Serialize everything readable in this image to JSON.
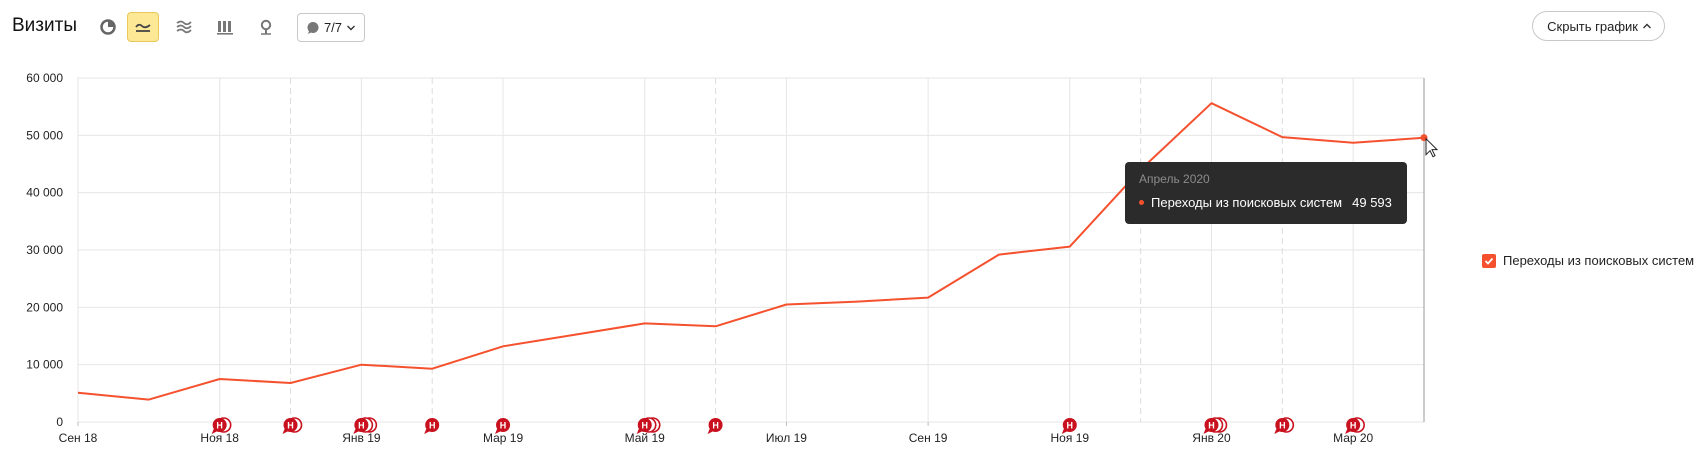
{
  "header": {
    "title": "Визиты",
    "annotations_selector": "7/7",
    "hide_chart_label": "Скрыть график"
  },
  "toolbar": {
    "buttons": [
      {
        "icon": "pie-chart-icon",
        "active": false
      },
      {
        "icon": "line-chart-icon",
        "active": true
      },
      {
        "icon": "area-chart-icon",
        "active": false
      },
      {
        "icon": "bar-chart-icon",
        "active": false
      },
      {
        "icon": "map-pin-icon",
        "active": false
      }
    ]
  },
  "tooltip": {
    "date": "Апрель 2020",
    "series": "Переходы из поисковых систем",
    "value": "49 593"
  },
  "legend": {
    "label": "Переходы из поисковых систем",
    "checked": true
  },
  "colors": {
    "series": "#f5512e",
    "annotation": "#c8101e",
    "active_button": "#fde896"
  },
  "chart_data": {
    "type": "line",
    "x": [
      "2018-09",
      "2018-10",
      "2018-11",
      "2018-12",
      "2019-01",
      "2019-02",
      "2019-03",
      "2019-04",
      "2019-05",
      "2019-06",
      "2019-07",
      "2019-08",
      "2019-09",
      "2019-10",
      "2019-11",
      "2019-12",
      "2020-01",
      "2020-02",
      "2020-03",
      "2020-04"
    ],
    "x_tick_labels": [
      "Сен 18",
      "Ноя 18",
      "Янв 19",
      "Мар 19",
      "Май 19",
      "Июл 19",
      "Сен 19",
      "Ноя 19",
      "Янв 20",
      "Мар 20"
    ],
    "series": [
      {
        "name": "Переходы из поисковых систем",
        "values": [
          5100,
          3900,
          7500,
          6800,
          10000,
          9300,
          13200,
          15200,
          17200,
          16700,
          20500,
          21000,
          21700,
          29200,
          30600,
          44000,
          55600,
          49700,
          48700,
          49593
        ]
      }
    ],
    "ylim": [
      0,
      60000
    ],
    "y_ticks": [
      0,
      10000,
      20000,
      30000,
      40000,
      50000,
      60000
    ],
    "y_tick_labels": [
      "0",
      "10 000",
      "20 000",
      "30 000",
      "40 000",
      "50 000",
      "60 000"
    ],
    "grid": true,
    "legend_position": "right",
    "annotations": [
      {
        "month": "2018-11",
        "count": 2
      },
      {
        "month": "2018-12",
        "count": 2
      },
      {
        "month": "2019-01",
        "count": 3
      },
      {
        "month": "2019-02",
        "count": 1
      },
      {
        "month": "2019-03",
        "count": 1
      },
      {
        "month": "2019-05",
        "count": 3
      },
      {
        "month": "2019-06",
        "count": 1
      },
      {
        "month": "2019-11",
        "count": 1
      },
      {
        "month": "2020-01",
        "count": 3
      },
      {
        "month": "2020-02",
        "count": 2
      },
      {
        "month": "2020-03",
        "count": 2
      }
    ],
    "annotation_letter": "Н"
  }
}
